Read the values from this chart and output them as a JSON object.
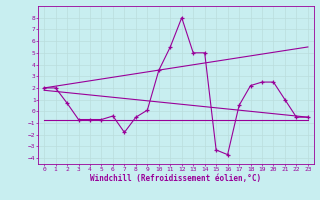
{
  "bg_color": "#c8eef0",
  "line_color": "#990099",
  "grid_color": "#aadddd",
  "xlabel": "Windchill (Refroidissement éolien,°C)",
  "xlim": [
    -0.5,
    23.5
  ],
  "ylim": [
    -4.5,
    9.0
  ],
  "yticks": [
    -4,
    -3,
    -2,
    -1,
    0,
    1,
    2,
    3,
    4,
    5,
    6,
    7,
    8
  ],
  "xticks": [
    0,
    1,
    2,
    3,
    4,
    5,
    6,
    7,
    8,
    9,
    10,
    11,
    12,
    13,
    14,
    15,
    16,
    17,
    18,
    19,
    20,
    21,
    22,
    23
  ],
  "series1_x": [
    0,
    1,
    2,
    3,
    4,
    5,
    6,
    7,
    8,
    9,
    10,
    11,
    12,
    13,
    14,
    15,
    16,
    17,
    18,
    19,
    20,
    21,
    22,
    23
  ],
  "series1_y": [
    2.0,
    2.0,
    0.7,
    -0.7,
    -0.7,
    -0.7,
    -0.4,
    -1.8,
    -0.5,
    0.1,
    3.5,
    5.5,
    8.0,
    5.0,
    5.0,
    -3.3,
    -3.7,
    0.5,
    2.2,
    2.5,
    2.5,
    1.0,
    -0.5,
    -0.5
  ],
  "series2_x": [
    0,
    23
  ],
  "series2_y": [
    2.0,
    5.5
  ],
  "series3_x": [
    0,
    23
  ],
  "series3_y": [
    1.8,
    -0.5
  ],
  "series4_x": [
    0,
    23
  ],
  "series4_y": [
    -0.7,
    -0.7
  ]
}
